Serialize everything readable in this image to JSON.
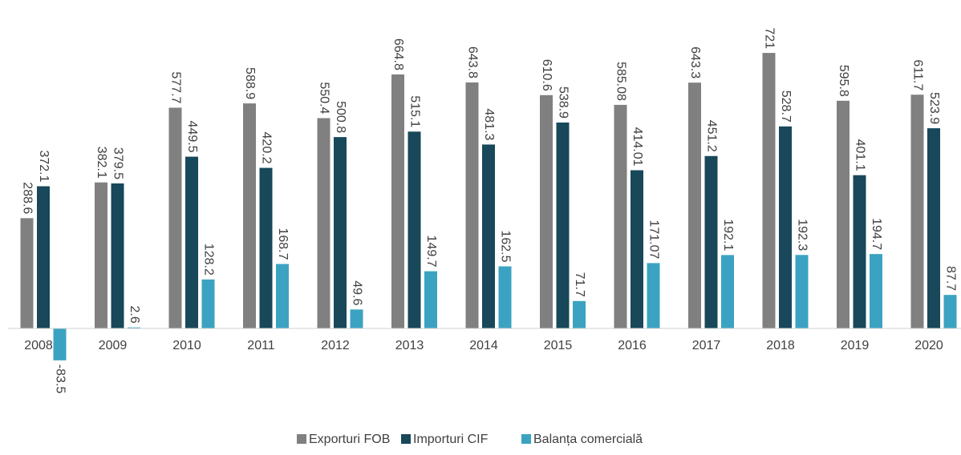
{
  "chart_data": {
    "type": "bar",
    "categories": [
      "2008",
      "2009",
      "2010",
      "2011",
      "2012",
      "2013",
      "2014",
      "2015",
      "2016",
      "2017",
      "2018",
      "2019",
      "2020"
    ],
    "series": [
      {
        "name": "Exporturi FOB",
        "color": "#808080",
        "values": [
          288.6,
          382.1,
          577.7,
          588.9,
          550.4,
          664.8,
          643.8,
          610.6,
          585.08,
          643.3,
          721,
          595.8,
          611.7
        ]
      },
      {
        "name": "Importuri CIF",
        "color": "#18485a",
        "values": [
          372.1,
          379.5,
          449.5,
          420.2,
          500.8,
          515.1,
          481.3,
          538.9,
          414.01,
          451.2,
          528.7,
          401.1,
          523.9
        ]
      },
      {
        "name": "Balanța comercială",
        "color": "#3ba3c1",
        "values": [
          -83.5,
          2.6,
          128.2,
          168.7,
          49.6,
          149.7,
          162.5,
          71.7,
          171.07,
          192.1,
          192.3,
          194.7,
          87.7
        ]
      }
    ],
    "legend": "bottom"
  }
}
